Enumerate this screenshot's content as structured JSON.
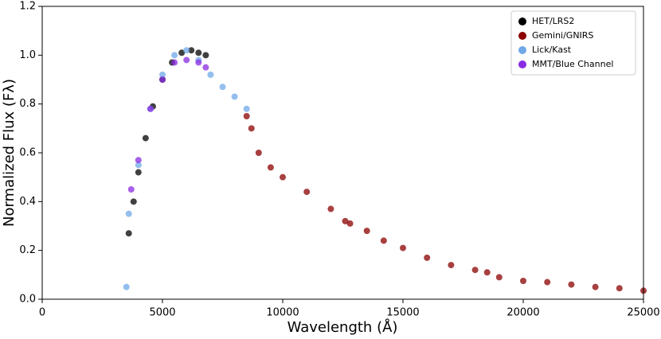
{
  "chart_data": {
    "type": "scatter",
    "xlabel": "Wavelength (Å)",
    "ylabel": "Normalized Flux (Fλ)",
    "xlim": [
      0,
      25000
    ],
    "ylim": [
      0,
      1.2
    ],
    "xticks": [
      0,
      5000,
      10000,
      15000,
      20000,
      25000
    ],
    "yticks": [
      {
        "value": 0,
        "label": "0.0"
      },
      0.2,
      0.4,
      0.6,
      0.8,
      {
        "value": 1,
        "label": "1.0"
      },
      1.2
    ],
    "legend": "upper right",
    "series": [
      {
        "name": "HET/LRS2",
        "color": "#000000",
        "x": [
          3600,
          3800,
          4000,
          4300,
          4600,
          5000,
          5400,
          5800,
          6200,
          6500,
          6800
        ],
        "y": [
          0.27,
          0.4,
          0.52,
          0.66,
          0.79,
          0.9,
          0.97,
          1.01,
          1.02,
          1.01,
          1.0
        ]
      },
      {
        "name": "Gemini/GNIRS",
        "color": "#8b0000",
        "x": [
          8500,
          8700,
          9000,
          9500,
          10000,
          11000,
          12000,
          12600,
          12800,
          13500,
          14200,
          15000,
          16000,
          17000,
          18000,
          18500,
          19000,
          20000,
          21000,
          22000,
          23000,
          24000,
          25000
        ],
        "y": [
          0.75,
          0.7,
          0.6,
          0.54,
          0.5,
          0.44,
          0.37,
          0.32,
          0.31,
          0.28,
          0.24,
          0.21,
          0.17,
          0.14,
          0.12,
          0.11,
          0.09,
          0.075,
          0.07,
          0.06,
          0.05,
          0.045,
          0.035
        ]
      },
      {
        "name": "Lick/Kast",
        "color": "#6fa8e8",
        "x": [
          3500,
          3600,
          4000,
          4500,
          5000,
          5500,
          6000,
          6500,
          7000,
          7500,
          8000,
          8500
        ],
        "y": [
          0.05,
          0.35,
          0.55,
          0.78,
          0.92,
          1.0,
          1.02,
          0.98,
          0.92,
          0.87,
          0.83,
          0.78
        ]
      },
      {
        "name": "MMT/Blue Channel",
        "color": "#8a2be2",
        "x": [
          3700,
          4000,
          4500,
          5000,
          5500,
          6000,
          6500,
          6800
        ],
        "y": [
          0.45,
          0.57,
          0.78,
          0.9,
          0.97,
          0.98,
          0.97,
          0.95
        ]
      }
    ]
  }
}
